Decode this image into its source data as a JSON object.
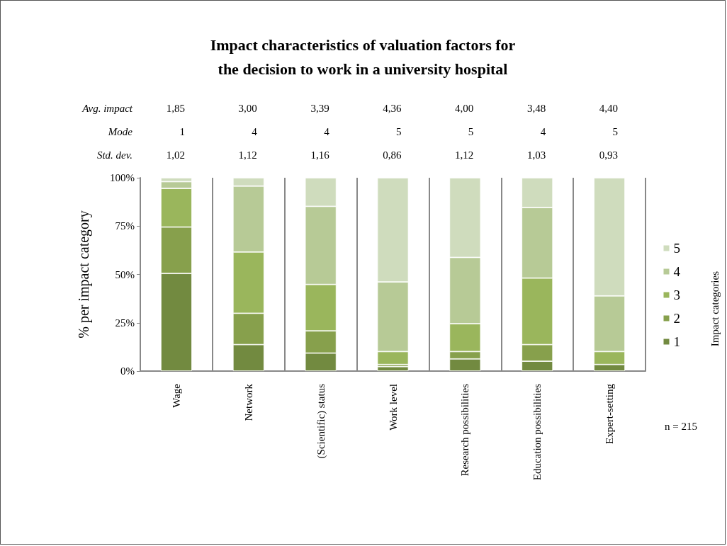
{
  "chart_data": {
    "type": "bar",
    "stacked": true,
    "title": "Impact characteristics of valuation factors for\nthe decision to work in a university hospital",
    "ylabel": "% per impact category",
    "legend_title": "Impact categories",
    "legend": "right",
    "grid": "x",
    "categories": [
      "Wage",
      "Network",
      "(Scientific) status",
      "Work level",
      "Research possibilities",
      "Education possibilities",
      "Expert-setting"
    ],
    "ylim": [
      0,
      100
    ],
    "yticks": [
      {
        "value": 0,
        "label": "0%"
      },
      {
        "value": 25,
        "label": "25%"
      },
      {
        "value": 50,
        "label": "50%"
      },
      {
        "value": 75,
        "label": "75%"
      },
      {
        "value": 100,
        "label": "100%"
      }
    ],
    "series": [
      {
        "name": "1",
        "color": "#728a40",
        "values": [
          50.5,
          13.7,
          9.3,
          2.3,
          6.3,
          5.1,
          3.4
        ]
      },
      {
        "name": "2",
        "color": "#87a04c",
        "values": [
          24,
          16.2,
          11.5,
          1.1,
          3.8,
          8.6,
          0
        ]
      },
      {
        "name": "3",
        "color": "#9ab65c",
        "values": [
          20,
          31.7,
          24,
          6.7,
          14.4,
          34.4,
          6.7
        ]
      },
      {
        "name": "4",
        "color": "#b7ca96",
        "values": [
          3.5,
          34.1,
          40.4,
          36,
          34.3,
          36.5,
          28.8
        ]
      },
      {
        "name": "5",
        "color": "#cfdcbd",
        "values": [
          2,
          4.3,
          14.8,
          53.9,
          41.2,
          15.4,
          61.1
        ]
      }
    ],
    "annotations": [
      "Avg. impact",
      "1,85",
      "3,00",
      "3,39",
      "4,36",
      "4,00",
      "3,48",
      "4,40",
      "Mode",
      "1",
      "4",
      "4",
      "5",
      "5",
      "4",
      "5",
      "Std. dev.",
      "1,02",
      "1,12",
      "1,16",
      "0,86",
      "1,12",
      "1,03",
      "0,93",
      "n = 215"
    ]
  }
}
